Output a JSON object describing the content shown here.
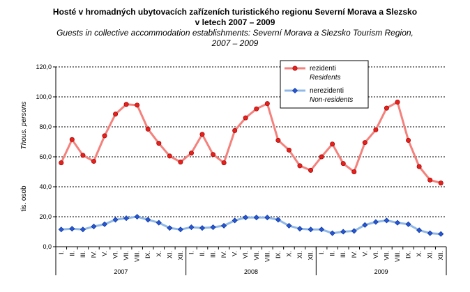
{
  "title_cz": "Hosté v hromadných ubytovacích zařízeních turistického regionu Severní Morava a Slezsko",
  "title_cz2": "v letech 2007  – 2009",
  "title_en": "Guests in collective accommodation establishments: Severní Morava a Slezsko Tourism Region,",
  "title_en2": "2007 – 2009",
  "chart_data": {
    "type": "line",
    "ylabel_cz": "tis. osob",
    "ylabel_en": "Thous. persons",
    "ylim": [
      0,
      120
    ],
    "yticks": [
      "0,0",
      "20,0",
      "40,0",
      "60,0",
      "80,0",
      "100,0",
      "120,0"
    ],
    "grid": true,
    "legend_position": "top-right",
    "months": [
      "I.",
      "II.",
      "III.",
      "IV.",
      "V.",
      "VI.",
      "VII.",
      "VIII.",
      "IX.",
      "X.",
      "XI.",
      "XII."
    ],
    "years": [
      "2007",
      "2008",
      "2009"
    ],
    "series": [
      {
        "name": "rezidenti",
        "name_en": "Residents",
        "color": "#f4817c",
        "marker_color": "#e8201c",
        "marker": "circle",
        "values": [
          56,
          71.5,
          61,
          57,
          74,
          88.5,
          95,
          94.5,
          78.5,
          69,
          60.5,
          56.5,
          62.5,
          75,
          61.5,
          56,
          77.5,
          86,
          92,
          95.5,
          71,
          64.5,
          54,
          51,
          60,
          68.5,
          55.5,
          50,
          69.5,
          78,
          92.5,
          96.5,
          71,
          53.5,
          44.5,
          42.5
        ]
      },
      {
        "name": "nerezidenti",
        "name_en": "Non-residents",
        "color": "#8fb8e8",
        "marker_color": "#2456d8",
        "marker": "diamond",
        "values": [
          11.5,
          12,
          11.5,
          13.5,
          15,
          18,
          19,
          20,
          18,
          16,
          12.5,
          11.5,
          13,
          12.5,
          13,
          14,
          17.5,
          19.5,
          19.5,
          19.5,
          18,
          14,
          12,
          11.5,
          11.5,
          9,
          10,
          10.5,
          14.5,
          16.5,
          17.5,
          16,
          15,
          11,
          9,
          8.5
        ]
      }
    ]
  }
}
